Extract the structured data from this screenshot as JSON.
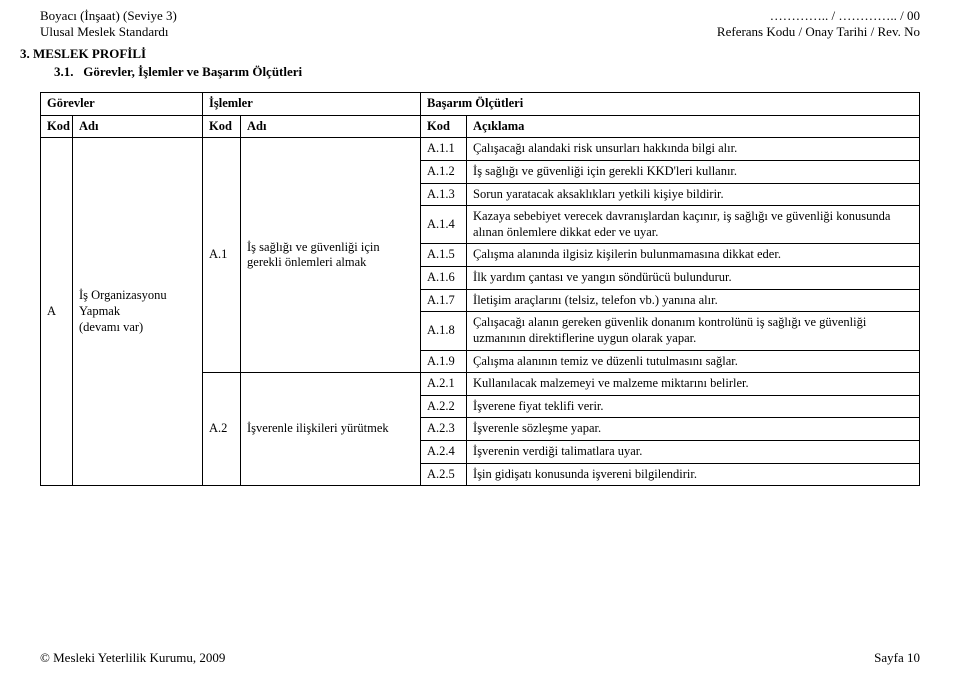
{
  "header": {
    "left_line1": "Boyacı (İnşaat) (Seviye 3)",
    "left_line2": "Ulusal Meslek Standardı",
    "right_line1": "………….. / ………….. / 00",
    "right_line2": "Referans Kodu / Onay Tarihi / Rev. No"
  },
  "section": {
    "num_title": "3.  MESLEK PROFİLİ",
    "sub_num": "3.1.",
    "sub_title": "Görevler, İşlemler ve Başarım Ölçütleri"
  },
  "table": {
    "top": {
      "gorevler": "Görevler",
      "islemler": "İşlemler",
      "basarim": "Başarım Ölçütleri",
      "kod": "Kod",
      "adi": "Adı",
      "aciklama": "Açıklama"
    },
    "gorev": {
      "kod": "A",
      "adi": "İş Organizasyonu Yapmak\n(devamı var)"
    },
    "islem1": {
      "kod": "A.1",
      "adi": "İş sağlığı ve güvenliği için gerekli önlemleri almak"
    },
    "islem2": {
      "kod": "A.2",
      "adi": "İşverenle ilişkileri yürütmek"
    },
    "rows": {
      "r1": {
        "k": "A.1.1",
        "t": "Çalışacağı alandaki risk unsurları hakkında bilgi alır."
      },
      "r2": {
        "k": "A.1.2",
        "t": "İş sağlığı ve güvenliği için gerekli KKD'leri kullanır."
      },
      "r3": {
        "k": "A.1.3",
        "t": "Sorun yaratacak aksaklıkları yetkili kişiye bildirir."
      },
      "r4": {
        "k": "A.1.4",
        "t": "Kazaya sebebiyet verecek davranışlardan kaçınır, iş sağlığı ve güvenliği konusunda alınan önlemlere dikkat eder ve uyar."
      },
      "r5": {
        "k": "A.1.5",
        "t": "Çalışma alanında ilgisiz kişilerin bulunmamasına dikkat eder."
      },
      "r6": {
        "k": "A.1.6",
        "t": "İlk yardım çantası ve yangın söndürücü bulundurur."
      },
      "r7": {
        "k": "A.1.7",
        "t": "İletişim araçlarını (telsiz, telefon vb.) yanına alır."
      },
      "r8": {
        "k": "A.1.8",
        "t": "Çalışacağı alanın gereken güvenlik donanım kontrolünü iş sağlığı ve güvenliği uzmanının direktiflerine uygun olarak yapar."
      },
      "r9": {
        "k": "A.1.9",
        "t": "Çalışma alanının temiz ve düzenli tutulmasını sağlar."
      },
      "r10": {
        "k": "A.2.1",
        "t": "Kullanılacak malzemeyi ve malzeme miktarını belirler."
      },
      "r11": {
        "k": "A.2.2",
        "t": "İşverene fiyat teklifi verir."
      },
      "r12": {
        "k": "A.2.3",
        "t": "İşverenle sözleşme yapar."
      },
      "r13": {
        "k": "A.2.4",
        "t": "İşverenin verdiği talimatlara uyar."
      },
      "r14": {
        "k": "A.2.5",
        "t": "İşin gidişatı konusunda işvereni bilgilendirir."
      }
    }
  },
  "footer": {
    "left": "© Mesleki Yeterlilik Kurumu, 2009",
    "right": "Sayfa 10"
  }
}
